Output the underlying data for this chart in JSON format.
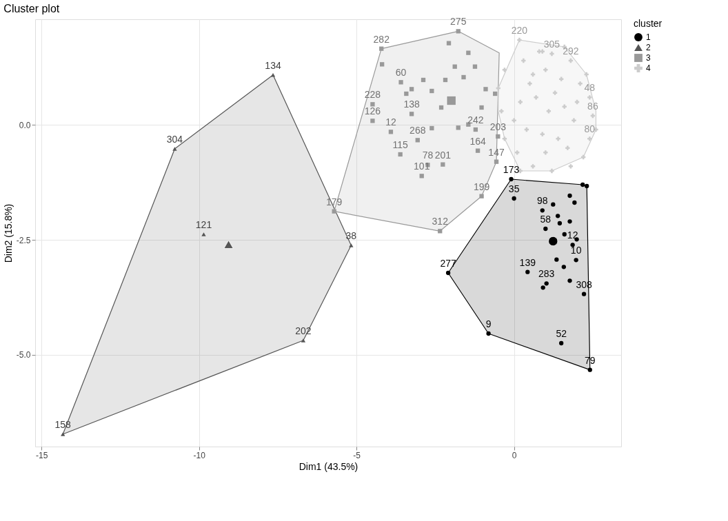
{
  "chart_data": {
    "type": "scatter",
    "title": "Cluster plot",
    "xlabel": "Dim1 (43.5%)",
    "ylabel": "Dim2 (15.8%)",
    "legend_title": "cluster",
    "legend": "right",
    "grid": true,
    "xlim": [
      -15.2,
      3.4
    ],
    "xticks": [
      -15,
      -10,
      -5,
      0
    ],
    "ylim": [
      -7.0,
      2.3
    ],
    "yticks": [
      {
        "value": 0,
        "label": "0.0"
      },
      {
        "value": -2.5,
        "label": "-2.5"
      },
      {
        "value": -5,
        "label": "-5.0"
      }
    ],
    "series": [
      {
        "type": "area",
        "color": "#000000",
        "x": [
          -0.09,
          2.18,
          2.31,
          2.41,
          -0.81,
          -2.09,
          -0.09
        ],
        "values": [
          -1.18,
          -1.3,
          -1.33,
          -5.33,
          -4.54,
          -3.22,
          -1.18
        ]
      },
      {
        "type": "area",
        "color": "#555555",
        "x": [
          -7.65,
          -5.17,
          -6.69,
          -14.32,
          -10.77,
          -7.65
        ],
        "values": [
          1.09,
          -2.62,
          -4.69,
          -6.73,
          -0.52,
          1.09
        ]
      },
      {
        "type": "area",
        "color": "#999999",
        "x": [
          -1.77,
          -0.47,
          -0.56,
          -1.03,
          -2.35,
          -5.71,
          -4.21,
          -1.77
        ],
        "values": [
          2.04,
          1.57,
          -0.8,
          -1.55,
          -2.31,
          -1.88,
          1.66,
          2.04
        ]
      },
      {
        "type": "area",
        "color": "#cccccc",
        "x": [
          0.17,
          1.6,
          2.3,
          2.6,
          2.6,
          2.2,
          1.2,
          0.2,
          -0.3,
          -0.5,
          -0.5,
          0.17
        ],
        "values": [
          1.85,
          1.7,
          1.1,
          0.3,
          -0.1,
          -0.7,
          -1.0,
          -1.0,
          -0.3,
          0.3,
          0.8,
          1.85
        ]
      },
      {
        "name": "1",
        "color": "#000000",
        "marker": "circle",
        "x": [
          -0.09,
          0.0,
          -2.09,
          -0.81,
          2.41,
          1.5,
          2.22,
          2.31,
          2.18,
          1.77,
          0.9,
          1.24,
          1.39,
          1.92,
          1.0,
          1.45,
          1.77,
          1.6,
          1.99,
          1.86,
          1.35,
          1.58,
          1.97,
          0.43,
          1.77,
          1.03,
          0.92
        ],
        "values": [
          -1.18,
          -1.6,
          -3.22,
          -4.54,
          -5.33,
          -4.75,
          -3.68,
          -1.33,
          -1.3,
          -1.54,
          -1.86,
          -1.73,
          -1.98,
          -1.69,
          -2.26,
          -2.14,
          -2.1,
          -2.38,
          -2.49,
          -2.61,
          -2.93,
          -3.09,
          -2.94,
          -3.2,
          -3.39,
          -3.45,
          -3.54
        ]
      },
      {
        "name": "2",
        "color": "#555555",
        "marker": "triangle",
        "x": [
          -7.65,
          -10.77,
          -9.85,
          -5.17,
          -6.69,
          -14.32
        ],
        "values": [
          1.09,
          -0.52,
          -2.38,
          -2.62,
          -4.69,
          -6.73
        ]
      },
      {
        "name": "3",
        "color": "#999999",
        "marker": "square",
        "x": [
          -1.77,
          -4.21,
          -4.19,
          -5.71,
          -2.35,
          -1.03,
          -0.56,
          -2.07,
          -3.59,
          -3.25,
          -3.42,
          -4.49,
          -4.49,
          -3.91,
          -3.25,
          -3.06,
          -3.61,
          -2.74,
          -2.26,
          -2.93,
          -2.61,
          -2.61,
          -1.77,
          -1.45,
          -1.22,
          -1.15,
          -0.51,
          -1.6,
          -1.24,
          -0.9,
          -1.88,
          -1.45,
          -2.18,
          -2.88,
          -0.6,
          -1.03,
          -2.31
        ],
        "values": [
          2.04,
          1.66,
          1.32,
          -1.88,
          -2.31,
          -1.55,
          -0.8,
          1.78,
          0.93,
          0.78,
          0.68,
          0.45,
          0.09,
          -0.15,
          0.24,
          -0.33,
          -0.64,
          -0.87,
          -0.86,
          -1.11,
          -0.07,
          0.74,
          -0.06,
          0.01,
          -0.1,
          -0.56,
          -0.25,
          1.04,
          1.27,
          0.78,
          1.27,
          1.57,
          0.98,
          0.98,
          0.68,
          0.38,
          0.38
        ]
      },
      {
        "name": "4",
        "color": "#cccccc",
        "marker": "cross",
        "x": [
          0.17,
          0.8,
          1.2,
          1.8,
          0.3,
          -0.3,
          0.6,
          1.0,
          1.5,
          2.1,
          2.4,
          2.5,
          2.4,
          2.2,
          1.8,
          1.2,
          0.6,
          0.1,
          -0.3,
          -0.4,
          0.2,
          0.7,
          1.1,
          1.6,
          1.9,
          1.4,
          0.9,
          0.4,
          0.0,
          1.3,
          0.5,
          1.7,
          2.0,
          0.2,
          1.0,
          -0.5,
          0.9,
          1.6,
          2.3,
          2.6
        ],
        "values": [
          1.85,
          1.6,
          1.55,
          1.4,
          1.4,
          1.2,
          1.1,
          1.2,
          1.0,
          0.9,
          0.6,
          0.2,
          -0.3,
          -0.7,
          -0.9,
          -1.0,
          -0.9,
          -0.6,
          -0.3,
          0.3,
          0.5,
          0.6,
          0.3,
          0.4,
          0.1,
          -0.3,
          -0.2,
          -0.1,
          0.1,
          0.7,
          0.9,
          -0.5,
          0.5,
          -1.0,
          -0.6,
          0.8,
          1.6,
          1.7,
          1.1,
          -0.1
        ]
      },
      {
        "color": "#000000",
        "marker": "circle",
        "x": [
          1.24
        ],
        "values": [
          -2.53
        ]
      },
      {
        "color": "#555555",
        "marker": "triangle",
        "x": [
          -9.06
        ],
        "values": [
          -2.6
        ]
      },
      {
        "color": "#999999",
        "marker": "square",
        "x": [
          -1.99
        ],
        "values": [
          0.53
        ]
      }
    ],
    "annotations": [
      {
        "text": "173",
        "x": -0.09,
        "y": -1.18
      },
      {
        "text": "35",
        "x": 0.0,
        "y": -1.6
      },
      {
        "text": "277",
        "x": -2.09,
        "y": -3.22
      },
      {
        "text": "9",
        "x": -0.81,
        "y": -4.54
      },
      {
        "text": "79",
        "x": 2.41,
        "y": -5.33
      },
      {
        "text": "52",
        "x": 1.5,
        "y": -4.75
      },
      {
        "text": "308",
        "x": 2.22,
        "y": -3.68
      },
      {
        "text": "98",
        "x": 0.9,
        "y": -1.86
      },
      {
        "text": "58",
        "x": 1.0,
        "y": -2.26
      },
      {
        "text": "12",
        "x": 1.86,
        "y": -2.61
      },
      {
        "text": "10",
        "x": 1.97,
        "y": -2.94
      },
      {
        "text": "139",
        "x": 0.43,
        "y": -3.2
      },
      {
        "text": "283",
        "x": 1.03,
        "y": -3.45
      },
      {
        "text": "134",
        "x": -7.65,
        "y": 1.09
      },
      {
        "text": "304",
        "x": -10.77,
        "y": -0.52
      },
      {
        "text": "121",
        "x": -9.85,
        "y": -2.38
      },
      {
        "text": "38",
        "x": -5.17,
        "y": -2.62
      },
      {
        "text": "202",
        "x": -6.69,
        "y": -4.69
      },
      {
        "text": "158",
        "x": -14.32,
        "y": -6.73
      },
      {
        "text": "275",
        "x": -1.77,
        "y": 2.04
      },
      {
        "text": "282",
        "x": -4.21,
        "y": 1.66
      },
      {
        "text": "179",
        "x": -5.71,
        "y": -1.88
      },
      {
        "text": "312",
        "x": -2.35,
        "y": -2.31
      },
      {
        "text": "199",
        "x": -1.03,
        "y": -1.55
      },
      {
        "text": "147",
        "x": -0.56,
        "y": -0.8
      },
      {
        "text": "60",
        "x": -3.59,
        "y": 0.93
      },
      {
        "text": "228",
        "x": -4.49,
        "y": 0.45
      },
      {
        "text": "126",
        "x": -4.49,
        "y": 0.09
      },
      {
        "text": "12",
        "x": -3.91,
        "y": -0.15
      },
      {
        "text": "138",
        "x": -3.25,
        "y": 0.24
      },
      {
        "text": "268",
        "x": -3.06,
        "y": -0.33
      },
      {
        "text": "115",
        "x": -3.61,
        "y": -0.64
      },
      {
        "text": "78",
        "x": -2.74,
        "y": -0.87
      },
      {
        "text": "201",
        "x": -2.26,
        "y": -0.86
      },
      {
        "text": "101",
        "x": -2.93,
        "y": -1.11
      },
      {
        "text": "242",
        "x": -1.22,
        "y": -0.1
      },
      {
        "text": "164",
        "x": -1.15,
        "y": -0.56
      },
      {
        "text": "203",
        "x": -0.51,
        "y": -0.25
      },
      {
        "text": "220",
        "x": 0.17,
        "y": 1.85
      },
      {
        "text": "305",
        "x": 1.2,
        "y": 1.55
      },
      {
        "text": "292",
        "x": 1.8,
        "y": 1.4
      },
      {
        "text": "48",
        "x": 2.4,
        "y": 0.6
      },
      {
        "text": "86",
        "x": 2.5,
        "y": 0.2
      },
      {
        "text": "80",
        "x": 2.4,
        "y": -0.3
      }
    ]
  }
}
